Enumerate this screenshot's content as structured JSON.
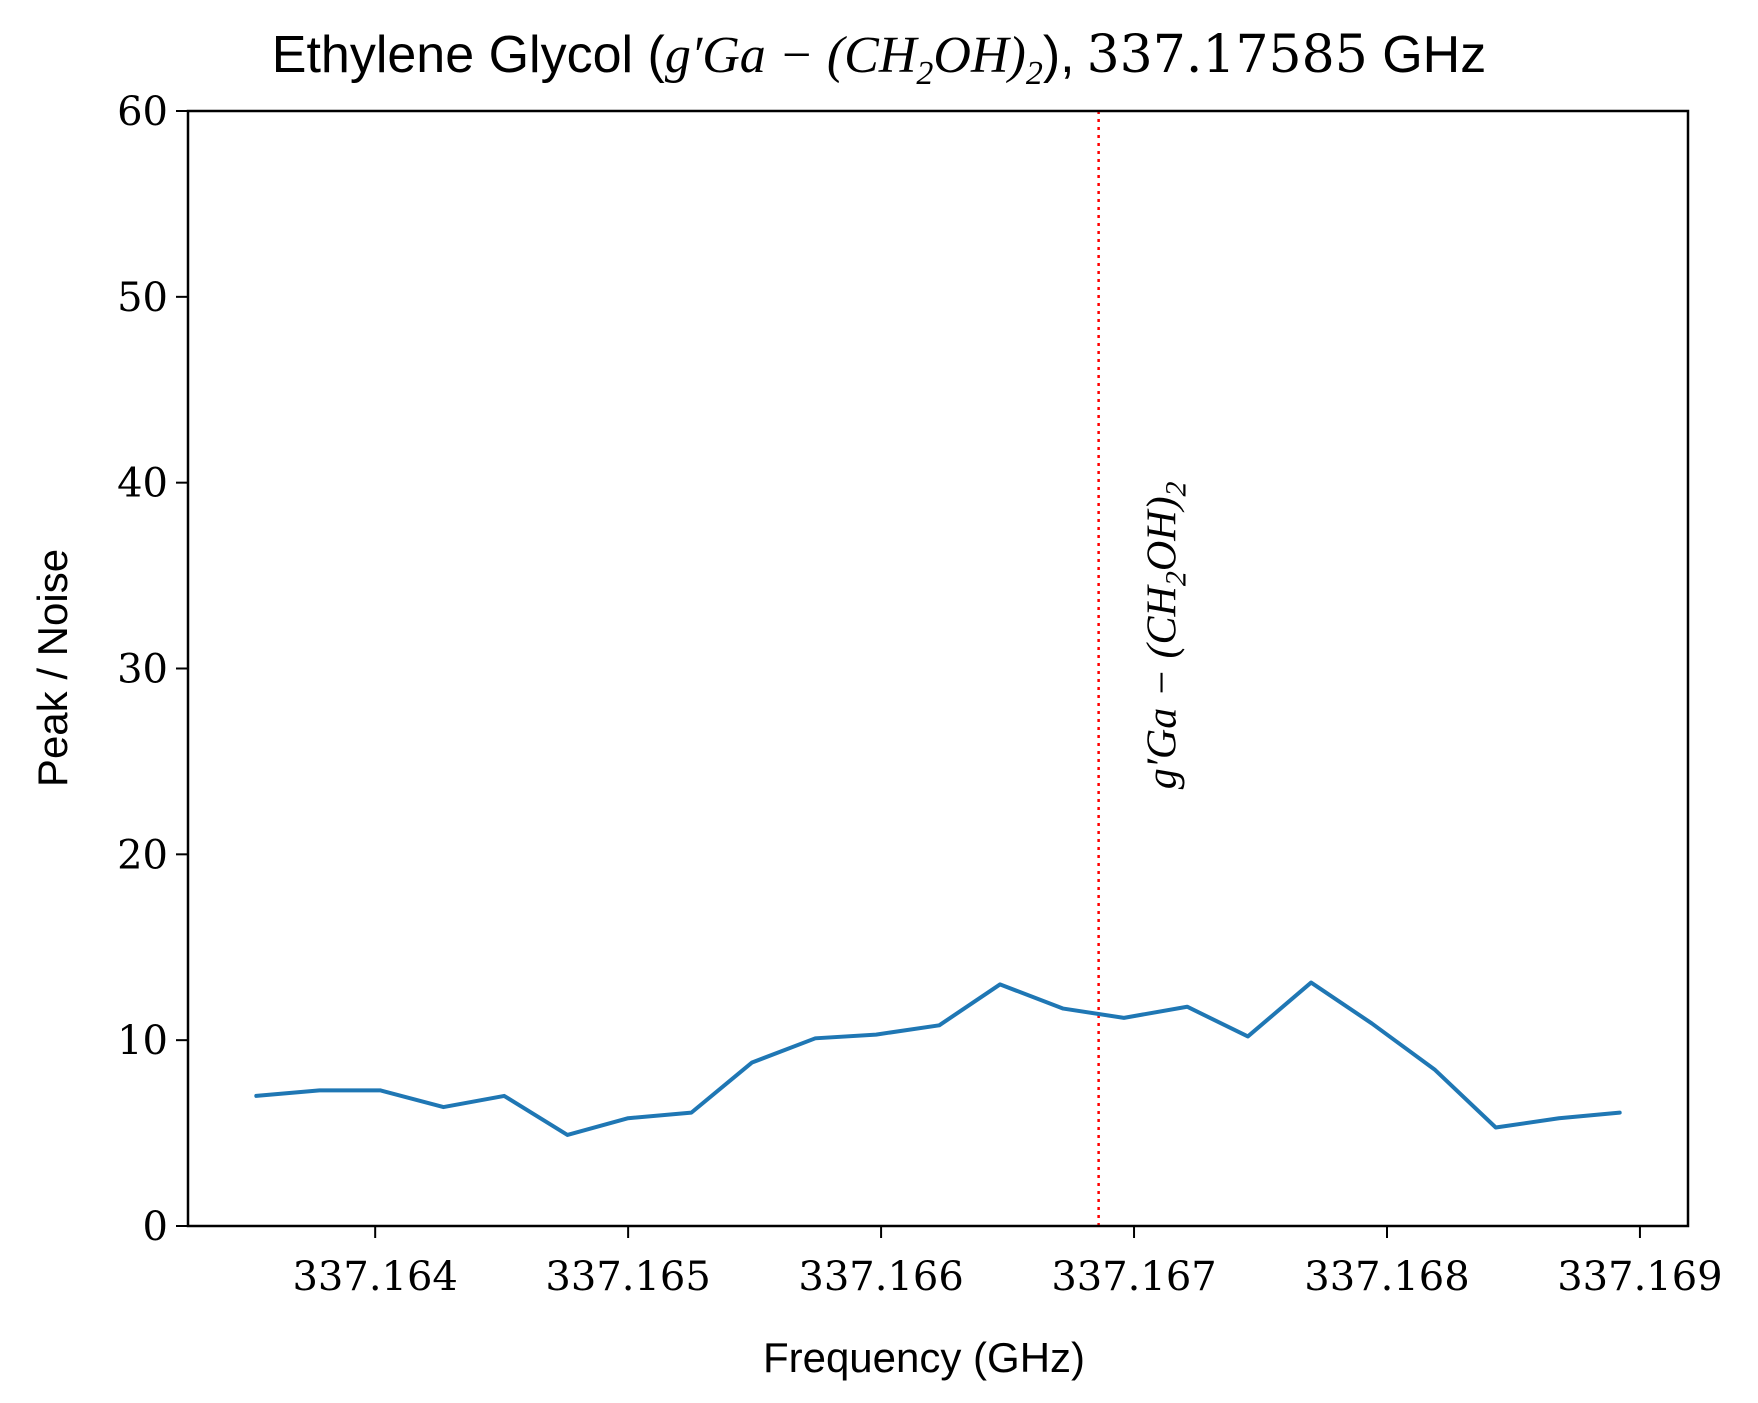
{
  "chart_data": {
    "type": "line",
    "title": {
      "prefix": "Ethylene Glycol (",
      "math": "g′Ga − (CH",
      "sub": "2",
      "math2": "OH)",
      "sub2": "2",
      "close": "),",
      "freq": "337.17585",
      "suffix": " GHz"
    },
    "xlabel": "Frequency (GHz)",
    "ylabel": "Peak / Noise",
    "xlim": [
      337.16326,
      337.16919
    ],
    "ylim": [
      0,
      60
    ],
    "xticks": [
      337.164,
      337.165,
      337.166,
      337.167,
      337.168,
      337.169
    ],
    "xtick_labels": [
      "337.164",
      "337.165",
      "337.166",
      "337.167",
      "337.168",
      "337.169"
    ],
    "yticks": [
      0,
      10,
      20,
      30,
      40,
      50,
      60
    ],
    "ytick_labels": [
      "0",
      "10",
      "20",
      "30",
      "40",
      "50",
      "60"
    ],
    "grid": false,
    "series": [
      {
        "color": "#1f77b4",
        "x": [
          337.16353,
          337.16378,
          337.16402,
          337.16427,
          337.16451,
          337.16476,
          337.165,
          337.16525,
          337.16549,
          337.16574,
          337.16598,
          337.16623,
          337.16647,
          337.16672,
          337.16696,
          337.16721,
          337.16745,
          337.1677,
          337.16794,
          337.16819,
          337.16843,
          337.16868,
          337.16892
        ],
        "y": [
          7.0,
          7.3,
          7.3,
          6.4,
          7.0,
          4.9,
          5.8,
          6.1,
          8.8,
          10.1,
          10.3,
          10.8,
          13.0,
          11.7,
          11.2,
          11.8,
          10.2,
          13.1,
          10.9,
          8.4,
          5.3,
          5.8,
          6.1
        ]
      }
    ],
    "vlines": [
      {
        "x": 337.16686,
        "color": "#ff0000",
        "style": "dotted",
        "label": {
          "math": "g′Ga − (CH",
          "sub": "2",
          "math2": "OH)",
          "sub2": "2"
        }
      }
    ]
  }
}
